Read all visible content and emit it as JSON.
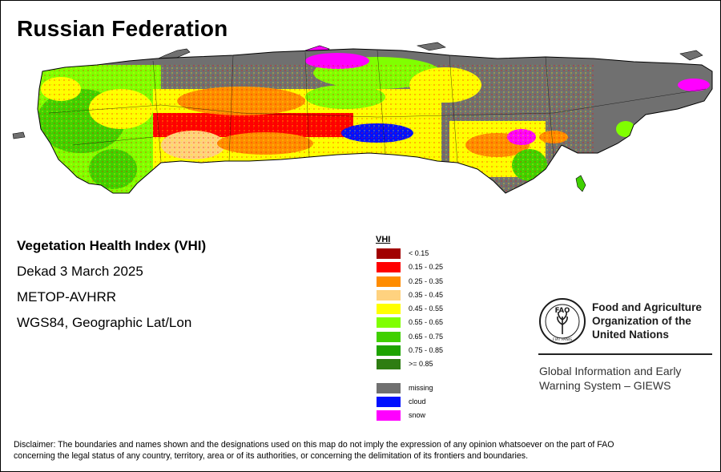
{
  "title": "Russian Federation",
  "info": {
    "index_name": "Vegetation Health Index (VHI)",
    "period": "Dekad 3 March 2025",
    "sensor": "METOP-AVHRR",
    "projection": "WGS84, Geographic Lat/Lon"
  },
  "legend": {
    "title": "VHI",
    "classes": [
      {
        "label": "< 0.15",
        "color": "#a10000"
      },
      {
        "label": "0.15 - 0.25",
        "color": "#ff0000"
      },
      {
        "label": "0.25 - 0.35",
        "color": "#ff8c00"
      },
      {
        "label": "0.35 - 0.45",
        "color": "#ffd27f"
      },
      {
        "label": "0.45 - 0.55",
        "color": "#ffff00"
      },
      {
        "label": "0.55 - 0.65",
        "color": "#80ff00"
      },
      {
        "label": "0.65 - 0.75",
        "color": "#40d000"
      },
      {
        "label": "0.75 - 0.85",
        "color": "#1ea300"
      },
      {
        "label": ">= 0.85",
        "color": "#2e7d12"
      }
    ],
    "other": [
      {
        "label": "missing",
        "color": "#707070"
      },
      {
        "label": "cloud",
        "color": "#0010ff"
      },
      {
        "label": "snow",
        "color": "#ff00ff"
      }
    ]
  },
  "organization": {
    "logo_text": "FAO",
    "logo_motto": "FIAT PANIS",
    "name_line1": "Food and Agriculture",
    "name_line2": "Organization of the",
    "name_line3": "United Nations",
    "system_line1": "Global Information and Early",
    "system_line2": "Warning System – GIEWS"
  },
  "disclaimer_line1": "Disclaimer: The boundaries and names shown and the designations used on this map do not imply the expression of any opinion whatsoever on the part of FAO",
  "disclaimer_line2": "concerning the legal status of any country, territory, area or of its authorities, or concerning the delimitation of its frontiers and boundaries."
}
